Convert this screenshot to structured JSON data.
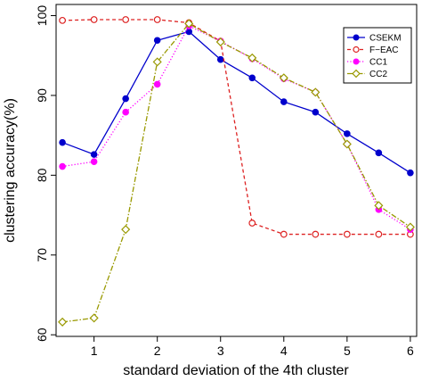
{
  "chart_data": {
    "type": "line",
    "xlabel": "standard deviation of the 4th cluster",
    "ylabel": "clustering accuracy(%)",
    "xlim": [
      0.4,
      6.1
    ],
    "ylim": [
      59.8,
      101.4
    ],
    "x_ticks": [
      1,
      2,
      3,
      4,
      5,
      6
    ],
    "y_ticks": [
      60,
      70,
      80,
      90,
      100
    ],
    "grid": false,
    "legend_position": "top-right",
    "x": [
      0.5,
      1,
      1.5,
      2,
      2.5,
      3,
      3.5,
      4,
      4.5,
      5,
      5.5,
      6
    ],
    "series": [
      {
        "name": "CSEKM",
        "color": "#0000cc",
        "line": "solid",
        "marker": "filled-circle",
        "values": [
          84.1,
          82.6,
          89.6,
          96.9,
          98.0,
          94.5,
          92.2,
          89.2,
          87.9,
          85.2,
          82.8,
          80.3
        ]
      },
      {
        "name": "F−EAC",
        "color": "#dd2222",
        "line": "dashed",
        "marker": "open-circle",
        "values": [
          99.4,
          99.5,
          99.5,
          99.5,
          99.1,
          96.8,
          74.0,
          72.6,
          72.6,
          72.6,
          72.6,
          72.6
        ]
      },
      {
        "name": "CC1",
        "color": "#ff00ff",
        "line": "dotted",
        "marker": "filled-circle",
        "values": [
          81.1,
          81.7,
          87.9,
          91.4,
          98.7,
          96.8,
          94.6,
          92.1,
          90.4,
          83.9,
          75.7,
          73.2
        ]
      },
      {
        "name": "CC2",
        "color": "#999900",
        "line": "dotdash",
        "marker": "open-diamond",
        "values": [
          61.6,
          62.1,
          73.2,
          94.2,
          99.0,
          96.7,
          94.7,
          92.2,
          90.4,
          83.9,
          76.2,
          73.5
        ]
      }
    ]
  }
}
